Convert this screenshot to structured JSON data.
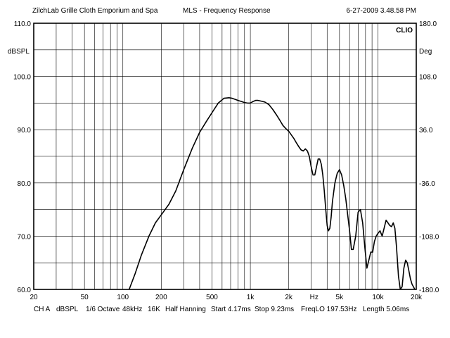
{
  "header": {
    "left": "ZilchLab Grille Cloth Emporium and Spa",
    "center": "MLS - Frequency Response",
    "right": "6-27-2009 3.48.58 PM"
  },
  "footer": {
    "items": [
      "CH A",
      "dBSPL",
      "1/6 Octave",
      "48kHz",
      "16K",
      "Half Hanning",
      "Start 4.17ms",
      "Stop 9.23ms",
      "FreqLO 197.53Hz",
      "Length 5.06ms"
    ]
  },
  "chart_data": {
    "type": "line",
    "title": "MLS - Frequency Response",
    "brand": "CLIO",
    "xscale": "log",
    "xlim": [
      20,
      20000
    ],
    "ylim": [
      60,
      110
    ],
    "y2lim": [
      -180,
      180
    ],
    "ylabel": "dBSPL",
    "y2label": "Deg",
    "xlabel_unit": "Hz",
    "grid": true,
    "x_tick_labels": [
      {
        "value": 20,
        "label": "20"
      },
      {
        "value": 50,
        "label": "50"
      },
      {
        "value": 100,
        "label": "100"
      },
      {
        "value": 200,
        "label": "200"
      },
      {
        "value": 500,
        "label": "500"
      },
      {
        "value": 1000,
        "label": "1k"
      },
      {
        "value": 2000,
        "label": "2k"
      },
      {
        "value": 5000,
        "label": "5k"
      },
      {
        "value": 10000,
        "label": "10k"
      },
      {
        "value": 20000,
        "label": "20k"
      }
    ],
    "x_unit_label": {
      "between": [
        2000,
        5000
      ],
      "label": "Hz"
    },
    "y_ticks": [
      {
        "value": 110,
        "label": "110.0"
      },
      {
        "value": 100,
        "label": "100.0"
      },
      {
        "value": 90,
        "label": "90.0"
      },
      {
        "value": 80,
        "label": "80.0"
      },
      {
        "value": 70,
        "label": "70.0"
      },
      {
        "value": 60,
        "label": "60.0"
      }
    ],
    "y2_ticks": [
      {
        "value": 180,
        "label": "180.0"
      },
      {
        "value": 108,
        "label": "108.0"
      },
      {
        "value": 36,
        "label": "36.0"
      },
      {
        "value": -36,
        "label": "-36.0"
      },
      {
        "value": -108,
        "label": "-108.0"
      },
      {
        "value": -180,
        "label": "-180.0"
      }
    ],
    "series": [
      {
        "color": "#000000",
        "x": [
          112,
          125,
          140,
          160,
          180,
          200,
          230,
          260,
          300,
          350,
          400,
          450,
          500,
          560,
          620,
          680,
          720,
          760,
          800,
          850,
          900,
          950,
          1000,
          1050,
          1100,
          1150,
          1200,
          1300,
          1400,
          1500,
          1600,
          1700,
          1800,
          1900,
          2000,
          2100,
          2200,
          2300,
          2400,
          2500,
          2600,
          2700,
          2800,
          2900,
          3000,
          3100,
          3200,
          3300,
          3400,
          3500,
          3600,
          3700,
          3800,
          3900,
          4000,
          4100,
          4200,
          4300,
          4400,
          4600,
          4800,
          5000,
          5200,
          5400,
          5600,
          5800,
          6000,
          6200,
          6400,
          6700,
          7000,
          7300,
          7600,
          7900,
          8200,
          8500,
          8800,
          9100,
          9400,
          9700,
          10000,
          10400,
          10800,
          11200,
          11600,
          12000,
          12400,
          12800,
          13200,
          13600,
          14000,
          14500,
          15000,
          15500,
          16000,
          16500,
          17000,
          17500,
          18000,
          18500,
          19000,
          19500,
          20000
        ],
        "y": [
          60.0,
          63.0,
          66.5,
          70.0,
          72.5,
          74.0,
          76.0,
          78.5,
          82.5,
          86.5,
          89.5,
          91.5,
          93.2,
          95.0,
          95.9,
          96.0,
          95.9,
          95.7,
          95.5,
          95.3,
          95.1,
          95.0,
          95.0,
          95.3,
          95.5,
          95.5,
          95.4,
          95.2,
          94.7,
          93.8,
          92.8,
          91.8,
          90.8,
          90.2,
          89.7,
          89.0,
          88.3,
          87.5,
          86.8,
          86.2,
          86.0,
          86.4,
          86.0,
          85.0,
          83.0,
          81.5,
          81.5,
          83.0,
          84.5,
          84.5,
          83.5,
          81.5,
          78.5,
          75.0,
          72.0,
          71.0,
          71.5,
          73.5,
          76.5,
          80.0,
          81.8,
          82.5,
          81.5,
          79.5,
          77.0,
          74.0,
          71.0,
          67.5,
          67.5,
          70.0,
          74.5,
          75.0,
          72.5,
          68.0,
          64.0,
          65.5,
          67.0,
          67.0,
          69.0,
          70.0,
          70.5,
          71.0,
          70.0,
          71.5,
          73.0,
          72.5,
          72.0,
          71.8,
          72.5,
          71.5,
          68.0,
          62.5,
          60.0,
          60.5,
          64.0,
          65.5,
          65.0,
          63.5,
          62.0,
          61.0,
          60.5,
          60.0,
          60.0
        ]
      }
    ]
  }
}
